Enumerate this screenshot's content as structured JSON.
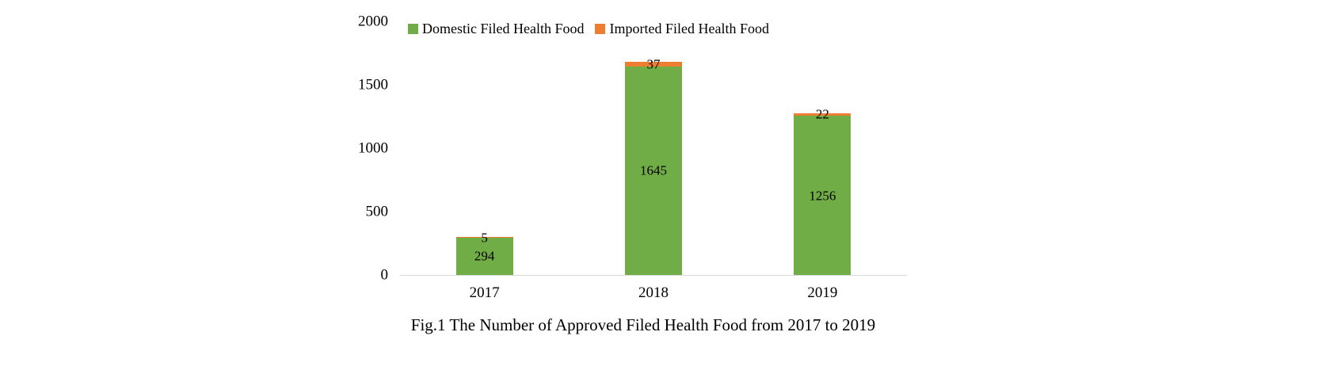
{
  "chart_data": {
    "type": "bar",
    "stacked": true,
    "categories": [
      "2017",
      "2018",
      "2019"
    ],
    "series": [
      {
        "name": "Domestic Filed Health Food",
        "color": "#70AD47",
        "values": [
          294,
          1645,
          1256
        ]
      },
      {
        "name": "Imported Filed Health Food",
        "color": "#ED7D31",
        "values": [
          5,
          37,
          22
        ]
      }
    ],
    "ylim": [
      0,
      2000
    ],
    "yticks": [
      0,
      500,
      1000,
      1500,
      2000
    ],
    "grid": false,
    "legend_position": "top",
    "data_labels": true,
    "caption": "Fig.1 The Number of Approved Filed Health Food from 2017 to 2019",
    "axis_color": "#d9d9d9",
    "background": "#ffffff"
  }
}
